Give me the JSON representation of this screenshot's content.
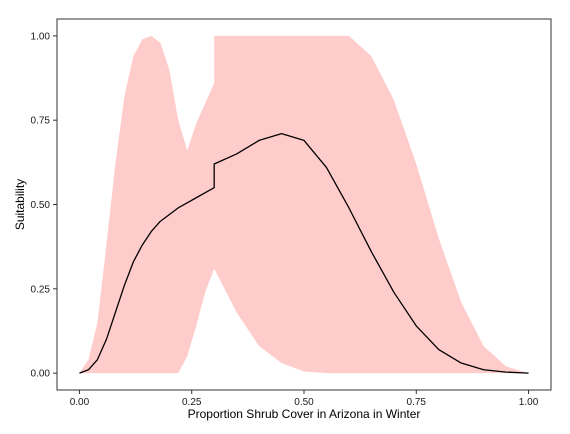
{
  "chart_data": {
    "type": "line",
    "title": "",
    "xlabel": "Proportion Shrub Cover in Arizona in Winter",
    "ylabel": "Suitability",
    "xlim": [
      -0.05,
      1.05
    ],
    "ylim": [
      -0.05,
      1.05
    ],
    "grid": false,
    "legend": "none",
    "x_ticks": [
      0,
      0.25,
      0.5,
      0.75,
      1
    ],
    "x_tick_labels": [
      "0.00",
      "0.25",
      "0.50",
      "0.75",
      "1.00"
    ],
    "y_ticks": [
      0,
      0.25,
      0.5,
      0.75,
      1
    ],
    "y_tick_labels": [
      "0.00",
      "0.25",
      "0.50",
      "0.75",
      "1.00"
    ],
    "colors": {
      "band": "#ffcccc",
      "line": "#000000",
      "border": "#333333"
    },
    "series": [
      {
        "kind": "line",
        "x": [
          0,
          0.02,
          0.04,
          0.06,
          0.08,
          0.1,
          0.12,
          0.14,
          0.16,
          0.18,
          0.2,
          0.22,
          0.24,
          0.26,
          0.28,
          0.3,
          0.3,
          0.35,
          0.4,
          0.45,
          0.5,
          0.55,
          0.6,
          0.65,
          0.7,
          0.75,
          0.8,
          0.85,
          0.9,
          0.95,
          1.0
        ],
        "y": [
          0,
          0.01,
          0.04,
          0.1,
          0.18,
          0.26,
          0.33,
          0.38,
          0.42,
          0.45,
          0.47,
          0.49,
          0.505,
          0.52,
          0.535,
          0.55,
          0.62,
          0.65,
          0.69,
          0.71,
          0.69,
          0.61,
          0.49,
          0.36,
          0.24,
          0.14,
          0.07,
          0.03,
          0.01,
          0.003,
          0
        ]
      },
      {
        "kind": "band",
        "x": [
          0,
          0.02,
          0.04,
          0.06,
          0.08,
          0.1,
          0.12,
          0.14,
          0.16,
          0.18,
          0.2,
          0.22,
          0.24,
          0.26,
          0.28,
          0.3,
          0.3,
          0.35,
          0.4,
          0.45,
          0.5,
          0.55,
          0.6,
          0.65,
          0.7,
          0.75,
          0.8,
          0.85,
          0.9,
          0.95,
          1.0
        ],
        "upper": [
          0,
          0.04,
          0.15,
          0.38,
          0.62,
          0.82,
          0.94,
          0.99,
          1.0,
          0.98,
          0.9,
          0.75,
          0.66,
          0.74,
          0.8,
          0.86,
          1.0,
          1.0,
          1.0,
          1.0,
          1.0,
          1.0,
          1.0,
          0.94,
          0.81,
          0.62,
          0.4,
          0.21,
          0.08,
          0.02,
          0
        ],
        "lower": [
          0,
          0,
          0,
          0,
          0,
          0,
          0,
          0,
          0,
          0,
          0,
          0,
          0.05,
          0.14,
          0.24,
          0.31,
          0.31,
          0.18,
          0.08,
          0.03,
          0.005,
          0,
          0,
          0,
          0,
          0,
          0,
          0,
          0,
          0,
          0
        ]
      }
    ]
  }
}
